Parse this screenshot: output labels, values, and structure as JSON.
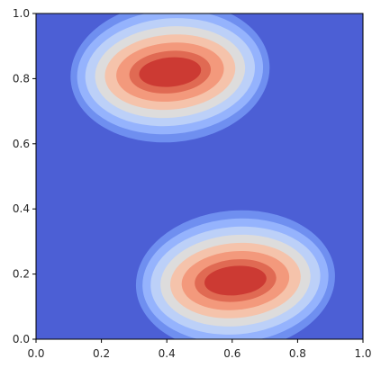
{
  "chart_data": {
    "type": "contourf",
    "colormap": "coolwarm",
    "xlim": [
      0.0,
      1.0
    ],
    "ylim": [
      0.0,
      1.0
    ],
    "grid": false,
    "xticks": [
      "0.0",
      "0.2",
      "0.4",
      "0.6",
      "0.8",
      "1.0"
    ],
    "yticks": [
      "0.0",
      "0.2",
      "0.4",
      "0.6",
      "0.8",
      "1.0"
    ],
    "background_color": "#4c5fd5",
    "levels": [
      {
        "color": "#6f8ff0"
      },
      {
        "color": "#95b3fd"
      },
      {
        "color": "#bcd0f8"
      },
      {
        "color": "#dddcdc"
      },
      {
        "color": "#f5c3ab"
      },
      {
        "color": "#f3997c"
      },
      {
        "color": "#e06a53"
      },
      {
        "color": "#cc3a33"
      }
    ],
    "peaks": [
      {
        "x": 0.41,
        "y": 0.82,
        "rx": [
          0.095,
          0.125,
          0.165,
          0.2,
          0.23,
          0.26,
          0.285,
          0.305
        ],
        "ry": [
          0.045,
          0.065,
          0.09,
          0.115,
          0.14,
          0.165,
          0.19,
          0.215
        ],
        "angle": 5
      },
      {
        "x": 0.61,
        "y": 0.18,
        "rx": [
          0.095,
          0.125,
          0.165,
          0.2,
          0.23,
          0.26,
          0.285,
          0.305
        ],
        "ry": [
          0.045,
          0.065,
          0.09,
          0.115,
          0.14,
          0.165,
          0.19,
          0.215
        ],
        "angle": 5
      }
    ]
  }
}
